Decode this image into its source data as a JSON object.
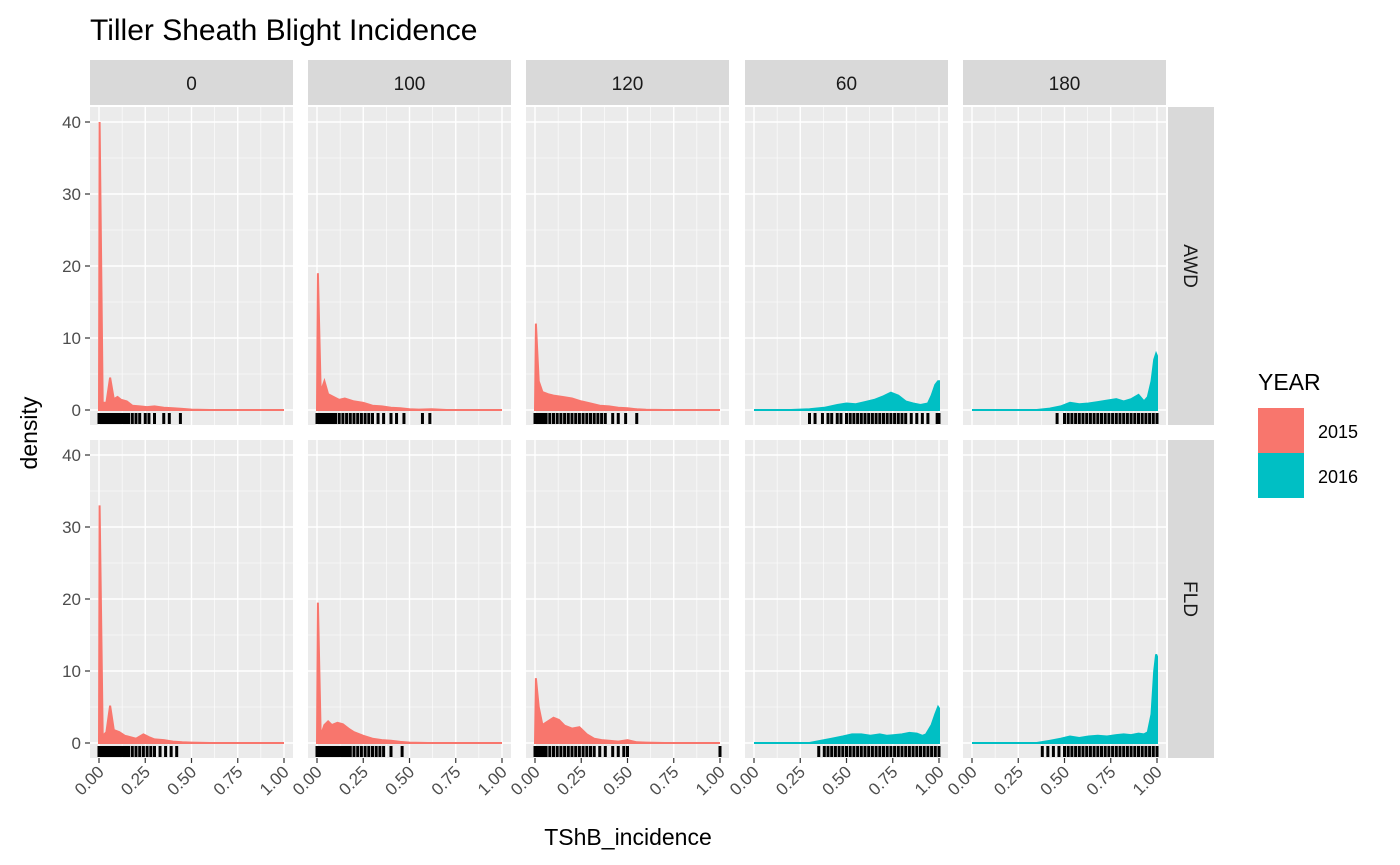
{
  "chart_data": {
    "type": "area",
    "title": "Tiller Sheath Blight Incidence",
    "xlabel": "TShB_incidence",
    "ylabel": "density",
    "xlim": [
      0,
      1
    ],
    "ylim": [
      0,
      40
    ],
    "x_ticks": [
      "0.00",
      "0.25",
      "0.50",
      "0.75",
      "1.00"
    ],
    "y_ticks": [
      "0",
      "10",
      "20",
      "30",
      "40"
    ],
    "grid": true,
    "legend": {
      "title": "YEAR",
      "placement": "right",
      "entries": [
        {
          "label": "2015",
          "color": "#F8766D"
        },
        {
          "label": "2016",
          "color": "#00BFC4"
        }
      ]
    },
    "col_facets": [
      "0",
      "100",
      "120",
      "60",
      "180"
    ],
    "row_facets": [
      "AWD",
      "FLD"
    ],
    "panels": [
      {
        "row": "AWD",
        "col": "0",
        "year": "2015",
        "density": [
          [
            0,
            0
          ],
          [
            0.003,
            40
          ],
          [
            0.02,
            1
          ],
          [
            0.04,
            1
          ],
          [
            0.06,
            4.5
          ],
          [
            0.08,
            1.5
          ],
          [
            0.1,
            1.8
          ],
          [
            0.12,
            1.4
          ],
          [
            0.15,
            1.2
          ],
          [
            0.18,
            0.6
          ],
          [
            0.22,
            0.5
          ],
          [
            0.26,
            0.4
          ],
          [
            0.3,
            0.5
          ],
          [
            0.35,
            0.3
          ],
          [
            0.4,
            0.25
          ],
          [
            0.45,
            0.15
          ],
          [
            0.5,
            0.05
          ],
          [
            0.6,
            0
          ],
          [
            1,
            0
          ]
        ],
        "rug": [
          0,
          0.01,
          0.02,
          0.03,
          0.04,
          0.05,
          0.06,
          0.07,
          0.08,
          0.09,
          0.1,
          0.11,
          0.12,
          0.13,
          0.14,
          0.15,
          0.16,
          0.18,
          0.2,
          0.22,
          0.25,
          0.27,
          0.3,
          0.35,
          0.38,
          0.44
        ]
      },
      {
        "row": "AWD",
        "col": "100",
        "year": "2015",
        "density": [
          [
            0,
            0
          ],
          [
            0.005,
            19
          ],
          [
            0.02,
            2.5
          ],
          [
            0.04,
            4
          ],
          [
            0.06,
            2.2
          ],
          [
            0.09,
            1.8
          ],
          [
            0.12,
            1.4
          ],
          [
            0.15,
            1.6
          ],
          [
            0.2,
            1.2
          ],
          [
            0.25,
            1
          ],
          [
            0.3,
            0.6
          ],
          [
            0.35,
            0.5
          ],
          [
            0.4,
            0.3
          ],
          [
            0.45,
            0.25
          ],
          [
            0.5,
            0.1
          ],
          [
            0.55,
            0.05
          ],
          [
            0.62,
            0.1
          ],
          [
            0.7,
            0
          ],
          [
            1,
            0
          ]
        ],
        "rug": [
          0,
          0.01,
          0.02,
          0.03,
          0.04,
          0.05,
          0.06,
          0.07,
          0.08,
          0.09,
          0.1,
          0.12,
          0.14,
          0.16,
          0.18,
          0.2,
          0.22,
          0.24,
          0.26,
          0.28,
          0.3,
          0.33,
          0.36,
          0.4,
          0.43,
          0.47,
          0.57,
          0.61
        ]
      },
      {
        "row": "AWD",
        "col": "120",
        "year": "2015",
        "density": [
          [
            0,
            0
          ],
          [
            0.005,
            12
          ],
          [
            0.02,
            4
          ],
          [
            0.04,
            2.5
          ],
          [
            0.07,
            2.2
          ],
          [
            0.1,
            2
          ],
          [
            0.15,
            1.8
          ],
          [
            0.2,
            1.6
          ],
          [
            0.25,
            1.2
          ],
          [
            0.3,
            0.9
          ],
          [
            0.35,
            0.6
          ],
          [
            0.4,
            0.5
          ],
          [
            0.45,
            0.3
          ],
          [
            0.5,
            0.25
          ],
          [
            0.55,
            0.1
          ],
          [
            0.6,
            0.03
          ],
          [
            0.7,
            0
          ],
          [
            1,
            0
          ]
        ],
        "rug": [
          0,
          0.01,
          0.02,
          0.03,
          0.04,
          0.05,
          0.06,
          0.08,
          0.1,
          0.12,
          0.14,
          0.16,
          0.18,
          0.2,
          0.22,
          0.24,
          0.26,
          0.28,
          0.3,
          0.32,
          0.34,
          0.36,
          0.38,
          0.42,
          0.45,
          0.49,
          0.55
        ]
      },
      {
        "row": "AWD",
        "col": "60",
        "year": "2016",
        "density": [
          [
            0,
            0
          ],
          [
            0.2,
            0
          ],
          [
            0.3,
            0.1
          ],
          [
            0.38,
            0.3
          ],
          [
            0.45,
            0.7
          ],
          [
            0.5,
            0.9
          ],
          [
            0.55,
            0.8
          ],
          [
            0.6,
            1.1
          ],
          [
            0.65,
            1.4
          ],
          [
            0.7,
            1.9
          ],
          [
            0.74,
            2.4
          ],
          [
            0.78,
            2
          ],
          [
            0.82,
            1.2
          ],
          [
            0.86,
            0.9
          ],
          [
            0.9,
            0.7
          ],
          [
            0.94,
            0.9
          ],
          [
            0.96,
            2
          ],
          [
            0.98,
            3.5
          ],
          [
            0.995,
            4
          ],
          [
            1,
            4
          ]
        ],
        "rug": [
          0.3,
          0.33,
          0.37,
          0.4,
          0.42,
          0.45,
          0.47,
          0.5,
          0.52,
          0.54,
          0.56,
          0.58,
          0.6,
          0.62,
          0.64,
          0.66,
          0.68,
          0.7,
          0.72,
          0.74,
          0.76,
          0.78,
          0.8,
          0.82,
          0.85,
          0.88,
          0.91,
          0.94,
          0.99,
          1
        ]
      },
      {
        "row": "AWD",
        "col": "180",
        "year": "2016",
        "density": [
          [
            0,
            0
          ],
          [
            0.35,
            0
          ],
          [
            0.42,
            0.2
          ],
          [
            0.48,
            0.5
          ],
          [
            0.53,
            1
          ],
          [
            0.58,
            0.8
          ],
          [
            0.63,
            0.9
          ],
          [
            0.68,
            1.1
          ],
          [
            0.73,
            1.3
          ],
          [
            0.78,
            1.5
          ],
          [
            0.82,
            1.2
          ],
          [
            0.86,
            1.5
          ],
          [
            0.9,
            2.1
          ],
          [
            0.93,
            1.2
          ],
          [
            0.95,
            1.8
          ],
          [
            0.97,
            4
          ],
          [
            0.985,
            7
          ],
          [
            0.995,
            7.8
          ],
          [
            1,
            7.5
          ]
        ],
        "rug": [
          0.46,
          0.5,
          0.52,
          0.54,
          0.56,
          0.58,
          0.6,
          0.62,
          0.64,
          0.66,
          0.68,
          0.7,
          0.72,
          0.74,
          0.76,
          0.78,
          0.8,
          0.82,
          0.84,
          0.86,
          0.88,
          0.9,
          0.92,
          0.94,
          0.96,
          0.98,
          1
        ]
      },
      {
        "row": "FLD",
        "col": "0",
        "year": "2015",
        "density": [
          [
            0,
            0
          ],
          [
            0.003,
            33
          ],
          [
            0.02,
            1
          ],
          [
            0.04,
            1.5
          ],
          [
            0.06,
            5.2
          ],
          [
            0.08,
            1.8
          ],
          [
            0.11,
            1.5
          ],
          [
            0.14,
            1
          ],
          [
            0.17,
            0.8
          ],
          [
            0.2,
            0.6
          ],
          [
            0.24,
            1.2
          ],
          [
            0.27,
            0.8
          ],
          [
            0.3,
            0.5
          ],
          [
            0.35,
            0.4
          ],
          [
            0.4,
            0.2
          ],
          [
            0.45,
            0.1
          ],
          [
            0.5,
            0.05
          ],
          [
            0.6,
            0
          ],
          [
            1,
            0
          ]
        ],
        "rug": [
          0,
          0.01,
          0.02,
          0.03,
          0.04,
          0.05,
          0.06,
          0.07,
          0.08,
          0.09,
          0.1,
          0.11,
          0.12,
          0.13,
          0.14,
          0.15,
          0.16,
          0.18,
          0.2,
          0.22,
          0.24,
          0.26,
          0.28,
          0.3,
          0.33,
          0.36,
          0.39,
          0.42
        ]
      },
      {
        "row": "FLD",
        "col": "100",
        "year": "2015",
        "density": [
          [
            0,
            0
          ],
          [
            0.005,
            19.5
          ],
          [
            0.02,
            1
          ],
          [
            0.04,
            2.5
          ],
          [
            0.06,
            3
          ],
          [
            0.08,
            2.5
          ],
          [
            0.11,
            2.8
          ],
          [
            0.14,
            2.6
          ],
          [
            0.17,
            2
          ],
          [
            0.2,
            1.5
          ],
          [
            0.25,
            1
          ],
          [
            0.3,
            0.6
          ],
          [
            0.35,
            0.4
          ],
          [
            0.4,
            0.3
          ],
          [
            0.45,
            0.15
          ],
          [
            0.5,
            0.05
          ],
          [
            0.6,
            0
          ],
          [
            1,
            0
          ]
        ],
        "rug": [
          0,
          0.01,
          0.02,
          0.03,
          0.04,
          0.05,
          0.06,
          0.07,
          0.08,
          0.09,
          0.1,
          0.11,
          0.12,
          0.13,
          0.14,
          0.15,
          0.16,
          0.17,
          0.18,
          0.2,
          0.22,
          0.24,
          0.26,
          0.28,
          0.3,
          0.32,
          0.34,
          0.36,
          0.4,
          0.46
        ]
      },
      {
        "row": "FLD",
        "col": "120",
        "year": "2015",
        "density": [
          [
            0,
            0
          ],
          [
            0.005,
            9
          ],
          [
            0.02,
            5
          ],
          [
            0.04,
            2.5
          ],
          [
            0.07,
            3
          ],
          [
            0.1,
            3.5
          ],
          [
            0.13,
            3.2
          ],
          [
            0.16,
            2.4
          ],
          [
            0.2,
            2
          ],
          [
            0.24,
            2.2
          ],
          [
            0.28,
            1.2
          ],
          [
            0.32,
            0.6
          ],
          [
            0.36,
            0.4
          ],
          [
            0.4,
            0.3
          ],
          [
            0.45,
            0.2
          ],
          [
            0.5,
            0.4
          ],
          [
            0.55,
            0.1
          ],
          [
            0.6,
            0.05
          ],
          [
            0.7,
            0
          ],
          [
            1,
            0
          ]
        ],
        "rug": [
          0,
          0.01,
          0.02,
          0.03,
          0.04,
          0.05,
          0.06,
          0.08,
          0.1,
          0.12,
          0.14,
          0.16,
          0.18,
          0.2,
          0.22,
          0.24,
          0.26,
          0.28,
          0.3,
          0.32,
          0.35,
          0.38,
          0.42,
          0.45,
          0.48,
          0.5,
          1
        ]
      },
      {
        "row": "FLD",
        "col": "60",
        "year": "2016",
        "density": [
          [
            0,
            0
          ],
          [
            0.3,
            0
          ],
          [
            0.36,
            0.3
          ],
          [
            0.42,
            0.6
          ],
          [
            0.48,
            0.9
          ],
          [
            0.53,
            1.2
          ],
          [
            0.58,
            1.2
          ],
          [
            0.63,
            1
          ],
          [
            0.68,
            1.2
          ],
          [
            0.72,
            1
          ],
          [
            0.76,
            1.1
          ],
          [
            0.8,
            1.2
          ],
          [
            0.84,
            1.4
          ],
          [
            0.88,
            1.3
          ],
          [
            0.91,
            1
          ],
          [
            0.93,
            1.2
          ],
          [
            0.96,
            2.5
          ],
          [
            0.98,
            4
          ],
          [
            0.995,
            5
          ],
          [
            1,
            4.8
          ]
        ],
        "rug": [
          0.35,
          0.38,
          0.4,
          0.42,
          0.44,
          0.46,
          0.48,
          0.5,
          0.52,
          0.54,
          0.56,
          0.58,
          0.6,
          0.62,
          0.64,
          0.66,
          0.68,
          0.7,
          0.72,
          0.74,
          0.76,
          0.78,
          0.8,
          0.82,
          0.84,
          0.86,
          0.88,
          0.9,
          0.92,
          0.94,
          0.96,
          0.98,
          1
        ]
      },
      {
        "row": "FLD",
        "col": "180",
        "year": "2016",
        "density": [
          [
            0,
            0
          ],
          [
            0.35,
            0
          ],
          [
            0.42,
            0.3
          ],
          [
            0.48,
            0.6
          ],
          [
            0.53,
            0.9
          ],
          [
            0.58,
            0.7
          ],
          [
            0.63,
            0.9
          ],
          [
            0.68,
            1
          ],
          [
            0.73,
            0.9
          ],
          [
            0.78,
            1.1
          ],
          [
            0.82,
            1.2
          ],
          [
            0.86,
            1.1
          ],
          [
            0.9,
            1.3
          ],
          [
            0.93,
            1.2
          ],
          [
            0.95,
            1.5
          ],
          [
            0.97,
            4
          ],
          [
            0.985,
            10
          ],
          [
            0.995,
            12.3
          ],
          [
            1,
            12
          ]
        ],
        "rug": [
          0.38,
          0.41,
          0.44,
          0.47,
          0.5,
          0.52,
          0.54,
          0.56,
          0.58,
          0.6,
          0.62,
          0.64,
          0.66,
          0.68,
          0.7,
          0.72,
          0.74,
          0.76,
          0.78,
          0.8,
          0.82,
          0.84,
          0.86,
          0.88,
          0.9,
          0.92,
          0.94,
          0.96,
          0.98,
          1
        ]
      }
    ]
  }
}
